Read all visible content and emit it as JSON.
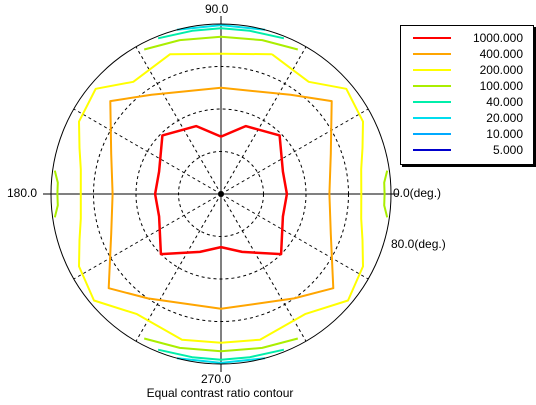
{
  "chart_data": {
    "type": "polar-contour",
    "title": "Equal contrast ratio contour",
    "angle_labels": {
      "top": "90.0",
      "left": "180.0",
      "right": "0.0(deg.)",
      "bottom": "270.0"
    },
    "radius_label": "80.0(deg.)",
    "radial_max": 80,
    "radial_rings": [
      20,
      40,
      60
    ],
    "spoke_angles": [
      0,
      30,
      60,
      90,
      120,
      150,
      180,
      210,
      240,
      270,
      300,
      330
    ],
    "legend": [
      {
        "value": "1000.000",
        "color": "#ff0000"
      },
      {
        "value": "400.000",
        "color": "#ffa500"
      },
      {
        "value": "200.000",
        "color": "#ffff00"
      },
      {
        "value": "100.000",
        "color": "#aaee00"
      },
      {
        "value": "40.000",
        "color": "#00eeaa"
      },
      {
        "value": "20.000",
        "color": "#00ddee"
      },
      {
        "value": "10.000",
        "color": "#00aaff"
      },
      {
        "value": "5.000",
        "color": "#0000cc"
      }
    ],
    "contours": [
      {
        "level": "1000.000",
        "color": "#ff0000",
        "closed": true,
        "points": [
          [
            0,
            31
          ],
          [
            20,
            31
          ],
          [
            45,
            39
          ],
          [
            70,
            34
          ],
          [
            90,
            27
          ],
          [
            110,
            34
          ],
          [
            135,
            39
          ],
          [
            160,
            31
          ],
          [
            180,
            31
          ],
          [
            200,
            31
          ],
          [
            225,
            40
          ],
          [
            250,
            29
          ],
          [
            270,
            25
          ],
          [
            290,
            29
          ],
          [
            315,
            40
          ],
          [
            340,
            31
          ]
        ]
      },
      {
        "level": "400.000",
        "color": "#ffa500",
        "closed": true,
        "points": [
          [
            0,
            51
          ],
          [
            20,
            55
          ],
          [
            40,
            68
          ],
          [
            55,
            57
          ],
          [
            90,
            50
          ],
          [
            125,
            57
          ],
          [
            140,
            68
          ],
          [
            160,
            55
          ],
          [
            180,
            51
          ],
          [
            200,
            55
          ],
          [
            220,
            69
          ],
          [
            235,
            60
          ],
          [
            270,
            54
          ],
          [
            305,
            60
          ],
          [
            320,
            69
          ],
          [
            340,
            55
          ]
        ]
      },
      {
        "level": "200.000",
        "color": "#ffff00",
        "closed": false,
        "points": [
          [
            70,
            70
          ],
          [
            90,
            66
          ],
          [
            110,
            70
          ],
          [
            128,
            67
          ],
          [
            140,
            77
          ],
          [
            153,
            75
          ],
          [
            162,
            70
          ],
          [
            170,
            67
          ],
          [
            180,
            66
          ],
          [
            190,
            67
          ],
          [
            198,
            70
          ],
          [
            207,
            75
          ],
          [
            220,
            78
          ],
          [
            235,
            69
          ],
          [
            255,
            71
          ],
          [
            270,
            70
          ],
          [
            285,
            71
          ],
          [
            305,
            69
          ],
          [
            320,
            78
          ],
          [
            333,
            75
          ],
          [
            342,
            70
          ],
          [
            350,
            67
          ],
          [
            0,
            66
          ],
          [
            10,
            67
          ],
          [
            18,
            70
          ],
          [
            27,
            75
          ],
          [
            40,
            77
          ],
          [
            52,
            67
          ],
          [
            70,
            70
          ]
        ]
      },
      {
        "level": "100.000",
        "color": "#aaee00",
        "closed": false,
        "points": [
          [
            62,
            77
          ],
          [
            75,
            75
          ],
          [
            90,
            74
          ],
          [
            105,
            75
          ],
          [
            118,
            77
          ]
        ]
      },
      {
        "level": "100.000",
        "color": "#aaee00",
        "closed": false,
        "points": [
          [
            242,
            77
          ],
          [
            255,
            75
          ],
          [
            270,
            74
          ],
          [
            285,
            75
          ],
          [
            298,
            77
          ]
        ]
      },
      {
        "level": "100.000",
        "color": "#aaee00",
        "closed": false,
        "points": [
          [
            172,
            79
          ],
          [
            176,
            77
          ],
          [
            180,
            77
          ],
          [
            184,
            77
          ],
          [
            188,
            79
          ]
        ]
      },
      {
        "level": "100.000",
        "color": "#aaee00",
        "closed": false,
        "points": [
          [
            352,
            79
          ],
          [
            356,
            77
          ],
          [
            0,
            77
          ],
          [
            4,
            77
          ],
          [
            8,
            79
          ]
        ]
      },
      {
        "level": "40.000",
        "color": "#00eeaa",
        "closed": false,
        "points": [
          [
            68,
            79
          ],
          [
            80,
            78
          ],
          [
            90,
            78
          ],
          [
            100,
            78
          ],
          [
            112,
            79
          ]
        ]
      },
      {
        "level": "40.000",
        "color": "#00eeaa",
        "closed": false,
        "points": [
          [
            248,
            79
          ],
          [
            260,
            78
          ],
          [
            270,
            78
          ],
          [
            280,
            78
          ],
          [
            292,
            79
          ]
        ]
      },
      {
        "level": "20.000",
        "color": "#00ddee",
        "closed": false,
        "points": [
          [
            75,
            80
          ],
          [
            90,
            79.5
          ],
          [
            105,
            80
          ]
        ]
      },
      {
        "level": "20.000",
        "color": "#00ddee",
        "closed": false,
        "points": [
          [
            255,
            80
          ],
          [
            270,
            79.5
          ],
          [
            285,
            80
          ]
        ]
      }
    ]
  }
}
